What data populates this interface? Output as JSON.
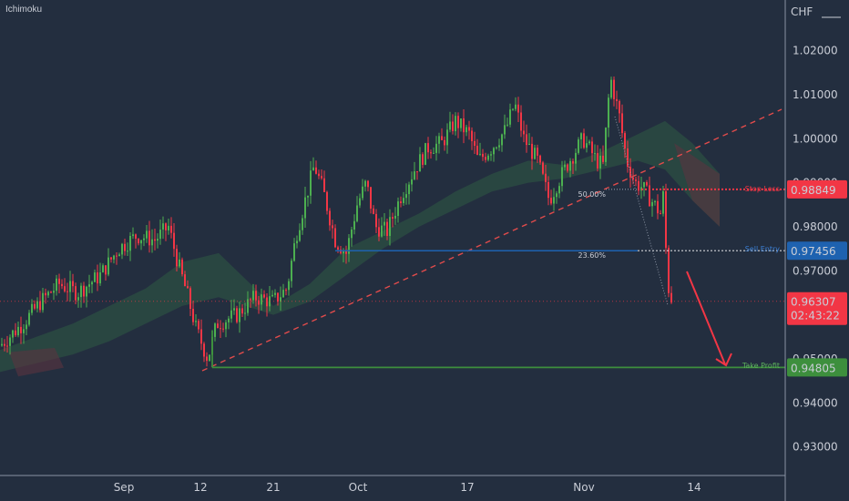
{
  "indicator_label": "Ichimoku",
  "currency": "CHF",
  "chart_data": {
    "type": "candlestick",
    "title": "",
    "xlabel": "",
    "ylabel": "",
    "ylim": [
      0.9235,
      1.0315
    ],
    "y_ticks": [
      "1.02000",
      "1.01000",
      "1.00000",
      "0.99000",
      "0.98000",
      "0.97000",
      "0.96000",
      "0.95000",
      "0.94000",
      "0.93000"
    ],
    "x_ticks": [
      "Sep",
      "12",
      "21",
      "Oct",
      "17",
      "Nov",
      "14"
    ],
    "grid": false,
    "price_path": [
      [
        0,
        0.953
      ],
      [
        10,
        0.955
      ],
      [
        25,
        0.958
      ],
      [
        45,
        0.963
      ],
      [
        65,
        0.967
      ],
      [
        85,
        0.965
      ],
      [
        110,
        0.969
      ],
      [
        130,
        0.975
      ],
      [
        150,
        0.978
      ],
      [
        170,
        0.977
      ],
      [
        185,
        0.98
      ],
      [
        195,
        0.972
      ],
      [
        205,
        0.965
      ],
      [
        215,
        0.957
      ],
      [
        228,
        0.95
      ],
      [
        238,
        0.958
      ],
      [
        260,
        0.96
      ],
      [
        280,
        0.964
      ],
      [
        300,
        0.963
      ],
      [
        315,
        0.966
      ],
      [
        325,
        0.978
      ],
      [
        335,
        0.986
      ],
      [
        345,
        0.994
      ],
      [
        355,
        0.988
      ],
      [
        368,
        0.977
      ],
      [
        380,
        0.974
      ],
      [
        392,
        0.985
      ],
      [
        402,
        0.99
      ],
      [
        412,
        0.98
      ],
      [
        425,
        0.979
      ],
      [
        440,
        0.987
      ],
      [
        455,
        0.993
      ],
      [
        470,
        0.998
      ],
      [
        485,
        0.999
      ],
      [
        500,
        1.004
      ],
      [
        515,
        1.001
      ],
      [
        525,
        0.995
      ],
      [
        540,
        0.998
      ],
      [
        555,
        1.002
      ],
      [
        565,
        1.008
      ],
      [
        575,
        1.0
      ],
      [
        590,
        0.995
      ],
      [
        603,
        0.986
      ],
      [
        612,
        0.99
      ],
      [
        625,
        0.995
      ],
      [
        640,
        1.0
      ],
      [
        655,
        0.995
      ],
      [
        662,
        0.994
      ],
      [
        670,
        1.014
      ],
      [
        680,
        1.005
      ],
      [
        688,
        0.995
      ],
      [
        697,
        0.99
      ],
      [
        705,
        0.989
      ],
      [
        715,
        0.986
      ],
      [
        725,
        0.983
      ],
      [
        728,
        0.987
      ],
      [
        731,
        0.975
      ],
      [
        734,
        0.966
      ],
      [
        738,
        0.963
      ]
    ],
    "cloud_top": [
      [
        0,
        0.952
      ],
      [
        40,
        0.955
      ],
      [
        80,
        0.958
      ],
      [
        120,
        0.962
      ],
      [
        160,
        0.966
      ],
      [
        200,
        0.972
      ],
      [
        240,
        0.974
      ],
      [
        270,
        0.968
      ],
      [
        300,
        0.962
      ],
      [
        340,
        0.967
      ],
      [
        380,
        0.975
      ],
      [
        420,
        0.979
      ],
      [
        460,
        0.983
      ],
      [
        500,
        0.988
      ],
      [
        540,
        0.992
      ],
      [
        580,
        0.995
      ],
      [
        620,
        0.994
      ],
      [
        660,
        0.997
      ],
      [
        700,
        1.001
      ],
      [
        730,
        1.004
      ],
      [
        760,
        0.999
      ],
      [
        790,
        0.992
      ]
    ],
    "cloud_bottom": [
      [
        0,
        0.947
      ],
      [
        40,
        0.949
      ],
      [
        80,
        0.951
      ],
      [
        120,
        0.954
      ],
      [
        160,
        0.958
      ],
      [
        200,
        0.962
      ],
      [
        240,
        0.964
      ],
      [
        270,
        0.962
      ],
      [
        300,
        0.96
      ],
      [
        340,
        0.963
      ],
      [
        380,
        0.969
      ],
      [
        420,
        0.975
      ],
      [
        460,
        0.98
      ],
      [
        500,
        0.984
      ],
      [
        540,
        0.988
      ],
      [
        580,
        0.99
      ],
      [
        620,
        0.991
      ],
      [
        660,
        0.993
      ],
      [
        700,
        0.995
      ],
      [
        730,
        0.993
      ],
      [
        760,
        0.986
      ],
      [
        790,
        0.98
      ]
    ],
    "annotations": {
      "stop_loss_label": "Stop Loss",
      "stop_loss_value": "0.98849",
      "sell_entry_label": "Sell Entry",
      "sell_entry_value": "0.97456",
      "current_value": "0.96307",
      "countdown": "02:43:22",
      "take_profit_label": "Take Profit",
      "take_profit_value": "0.94805",
      "fib_50_label": "50.00%",
      "fib_236_label": "23.60%"
    },
    "levels": {
      "stop_loss": 0.98849,
      "sell_entry": 0.97456,
      "current": 0.96307,
      "take_profit": 0.94805
    },
    "colors": {
      "background": "#232e3f",
      "up": "#4caf50",
      "down": "#f23645",
      "stop_loss": "#f23645",
      "sell_entry": "#1e62b0",
      "take_profit": "#3d8f3d",
      "cloud_green": "#2f5b43",
      "cloud_red": "#5a3340",
      "trend": "#e04b4b"
    }
  }
}
